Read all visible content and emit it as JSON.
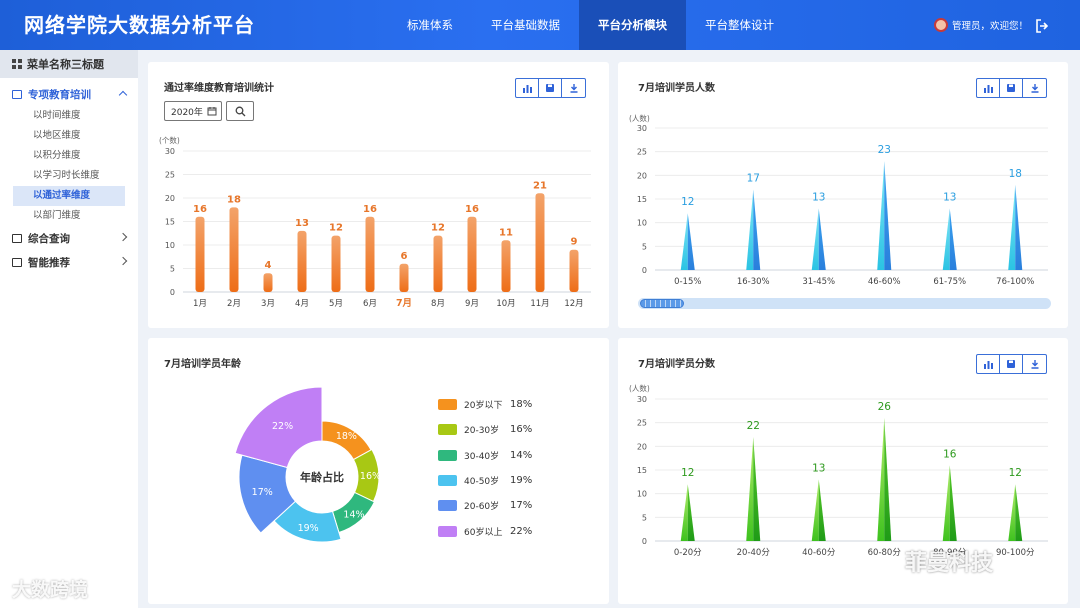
{
  "header": {
    "title": "网络学院大数据分析平台",
    "nav": [
      "标准体系",
      "平台基础数据",
      "平台分析模块",
      "平台整体设计"
    ],
    "active_nav": 2,
    "user_text": "管理员，欢迎您！"
  },
  "sidebar": {
    "menu_title": "菜单名称三标题",
    "sections": [
      {
        "label": "专项教育培训",
        "open": true
      },
      {
        "label": "综合查询",
        "open": false
      },
      {
        "label": "智能推荐",
        "open": false
      }
    ],
    "sub_items": [
      "以时间维度",
      "以地区维度",
      "以积分维度",
      "以学习时长维度",
      "以通过率维度",
      "以部门维度"
    ],
    "active_sub": 4
  },
  "filter": {
    "year": "2020年"
  },
  "colors": {
    "accent": "#2f62d8",
    "header": "#2a6ff0",
    "orange": "#ee7a2a",
    "cyan": "#2ec3e6",
    "green": "#3fc21f"
  },
  "watermarks": {
    "left": "大数跨境",
    "right": "菲曼科技"
  },
  "chart_data": [
    {
      "type": "bar",
      "title": "通过率维度教育培训统计",
      "ylabel": "(个数)",
      "ylim": [
        0,
        30
      ],
      "yticks": [
        0,
        5,
        10,
        15,
        20,
        25,
        30
      ],
      "categories": [
        "1月",
        "2月",
        "3月",
        "4月",
        "5月",
        "6月",
        "7月",
        "8月",
        "9月",
        "10月",
        "11月",
        "12月"
      ],
      "values": [
        16,
        18,
        4,
        13,
        12,
        16,
        6,
        12,
        16,
        11,
        21,
        9
      ],
      "highlight": "7月"
    },
    {
      "type": "bar",
      "title": "7月培训学员人数",
      "ylabel": "(人数)",
      "ylim": [
        0,
        30
      ],
      "yticks": [
        0,
        5,
        10,
        15,
        20,
        25,
        30
      ],
      "categories": [
        "0-15%",
        "16-30%",
        "31-45%",
        "46-60%",
        "61-75%",
        "76-100%"
      ],
      "values": [
        12,
        17,
        13,
        23,
        13,
        18
      ]
    },
    {
      "type": "pie",
      "title": "7月培训学员年龄",
      "center_label": "年龄占比",
      "slices": [
        {
          "label": "20岁以下",
          "value": 18,
          "display": "18%",
          "color": "#f5921e"
        },
        {
          "label": "20-30岁",
          "value": 16,
          "display": "16%",
          "color": "#a8c814"
        },
        {
          "label": "30-40岁",
          "value": 14,
          "display": "14%",
          "color": "#2fb87e"
        },
        {
          "label": "40-50岁",
          "value": 19,
          "display": "19%",
          "color": "#4cc3ef"
        },
        {
          "label": "20-60岁",
          "value": 17,
          "display": "17%",
          "color": "#5f8ff0"
        },
        {
          "label": "60岁以上",
          "value": 22,
          "display": "22%",
          "color": "#c07ff5"
        }
      ]
    },
    {
      "type": "bar",
      "title": "7月培训学员分数",
      "ylabel": "(人数)",
      "ylim": [
        0,
        30
      ],
      "yticks": [
        0,
        5,
        10,
        15,
        20,
        25,
        30
      ],
      "categories": [
        "0-20分",
        "20-40分",
        "40-60分",
        "60-80分",
        "80-90分",
        "90-100分"
      ],
      "values": [
        12,
        22,
        13,
        26,
        16,
        12
      ]
    }
  ]
}
